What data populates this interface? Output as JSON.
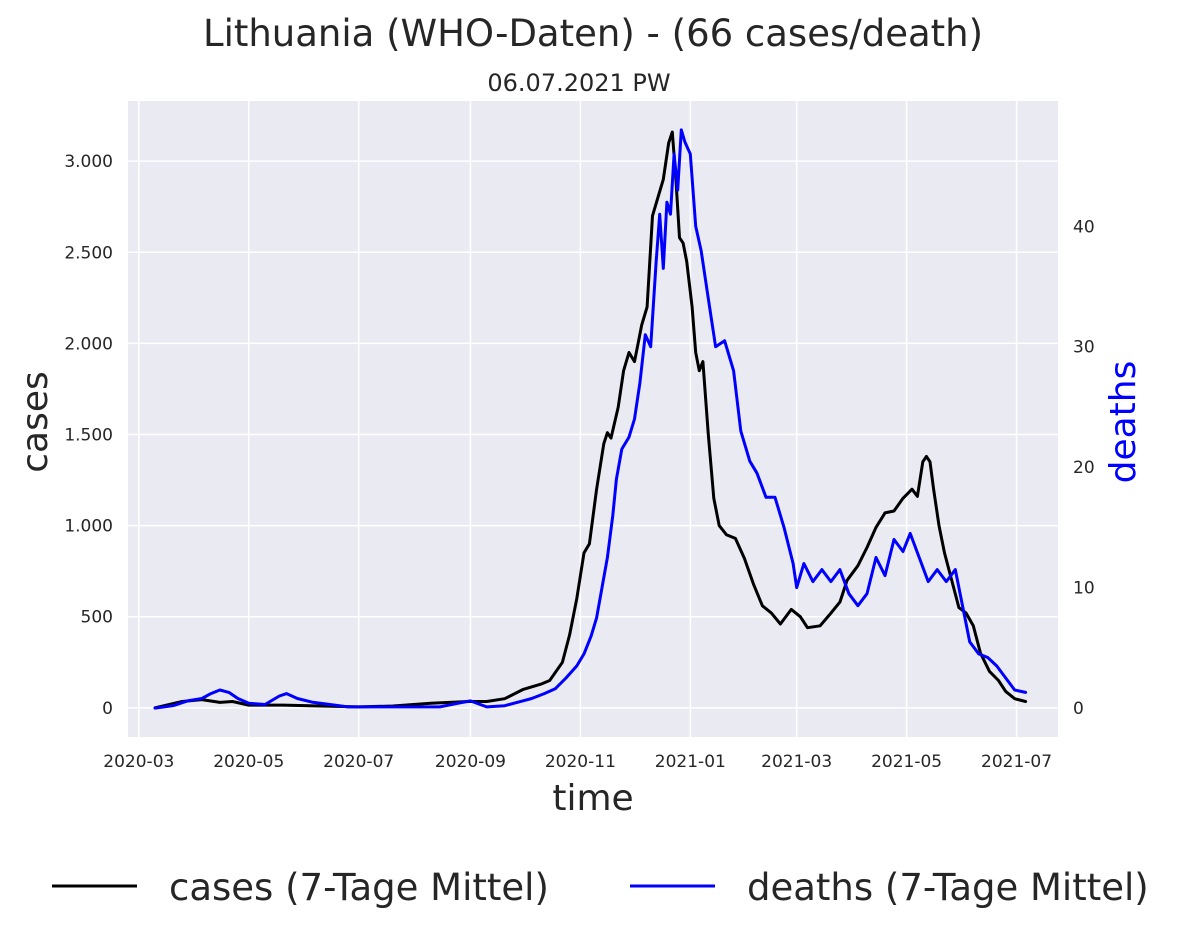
{
  "chart_data": {
    "type": "line",
    "title": "Lithuania (WHO-Daten) - (66 cases/death)",
    "subtitle": "06.07.2021 PW",
    "xlabel": "time",
    "ylabel_left": "cases",
    "ylabel_right": "deaths",
    "x_ticks": [
      "2020-03",
      "2020-05",
      "2020-07",
      "2020-09",
      "2020-11",
      "2021-01",
      "2021-03",
      "2021-05",
      "2021-07"
    ],
    "y_left_ticks": [
      0,
      500,
      1000,
      1500,
      2000,
      2500,
      3000
    ],
    "y_left_tick_labels": [
      "0",
      "500",
      "1.000",
      "1.500",
      "2.000",
      "2.500",
      "3.000"
    ],
    "y_right_ticks": [
      0,
      10,
      20,
      30,
      40
    ],
    "y_right_tick_labels": [
      "0",
      "10",
      "20",
      "30",
      "40"
    ],
    "x_range": [
      "2020-02-24",
      "2021-07-24"
    ],
    "y_left_range": [
      -160,
      3330
    ],
    "y_right_range": [
      -2.4,
      50.4
    ],
    "grid": true,
    "legend_position": "bottom",
    "colors": {
      "cases": "#000000",
      "deaths": "#0000ff",
      "background": "#eaeaf2",
      "grid": "#ffffff"
    },
    "series": [
      {
        "name": "cases (7-Tage Mittel)",
        "axis": "left",
        "color": "#000000",
        "points": [
          [
            "2020-03-10",
            0
          ],
          [
            "2020-03-25",
            35
          ],
          [
            "2020-04-05",
            45
          ],
          [
            "2020-04-15",
            30
          ],
          [
            "2020-04-22",
            35
          ],
          [
            "2020-05-01",
            15
          ],
          [
            "2020-05-20",
            15
          ],
          [
            "2020-06-10",
            10
          ],
          [
            "2020-07-01",
            5
          ],
          [
            "2020-07-20",
            10
          ],
          [
            "2020-08-10",
            25
          ],
          [
            "2020-08-31",
            35
          ],
          [
            "2020-09-10",
            35
          ],
          [
            "2020-09-20",
            50
          ],
          [
            "2020-09-30",
            100
          ],
          [
            "2020-10-10",
            130
          ],
          [
            "2020-10-15",
            150
          ],
          [
            "2020-10-22",
            250
          ],
          [
            "2020-10-26",
            400
          ],
          [
            "2020-10-30",
            600
          ],
          [
            "2020-11-03",
            850
          ],
          [
            "2020-11-06",
            900
          ],
          [
            "2020-11-10",
            1200
          ],
          [
            "2020-11-14",
            1450
          ],
          [
            "2020-11-16",
            1510
          ],
          [
            "2020-11-18",
            1480
          ],
          [
            "2020-11-22",
            1650
          ],
          [
            "2020-11-25",
            1850
          ],
          [
            "2020-11-28",
            1950
          ],
          [
            "2020-12-01",
            1900
          ],
          [
            "2020-12-05",
            2100
          ],
          [
            "2020-12-08",
            2200
          ],
          [
            "2020-12-11",
            2700
          ],
          [
            "2020-12-14",
            2800
          ],
          [
            "2020-12-17",
            2900
          ],
          [
            "2020-12-20",
            3100
          ],
          [
            "2020-12-22",
            3160
          ],
          [
            "2020-12-24",
            2900
          ],
          [
            "2020-12-26",
            2580
          ],
          [
            "2020-12-28",
            2550
          ],
          [
            "2020-12-30",
            2450
          ],
          [
            "2021-01-02",
            2200
          ],
          [
            "2021-01-04",
            1950
          ],
          [
            "2021-01-06",
            1850
          ],
          [
            "2021-01-08",
            1900
          ],
          [
            "2021-01-11",
            1500
          ],
          [
            "2021-01-14",
            1150
          ],
          [
            "2021-01-17",
            1000
          ],
          [
            "2021-01-21",
            950
          ],
          [
            "2021-01-26",
            930
          ],
          [
            "2021-01-31",
            820
          ],
          [
            "2021-02-05",
            680
          ],
          [
            "2021-02-10",
            560
          ],
          [
            "2021-02-15",
            520
          ],
          [
            "2021-02-20",
            460
          ],
          [
            "2021-02-26",
            540
          ],
          [
            "2021-03-03",
            500
          ],
          [
            "2021-03-07",
            440
          ],
          [
            "2021-03-14",
            450
          ],
          [
            "2021-03-20",
            520
          ],
          [
            "2021-03-25",
            580
          ],
          [
            "2021-03-29",
            700
          ],
          [
            "2021-04-04",
            780
          ],
          [
            "2021-04-09",
            880
          ],
          [
            "2021-04-14",
            990
          ],
          [
            "2021-04-19",
            1070
          ],
          [
            "2021-04-24",
            1080
          ],
          [
            "2021-04-29",
            1150
          ],
          [
            "2021-05-04",
            1200
          ],
          [
            "2021-05-07",
            1160
          ],
          [
            "2021-05-10",
            1350
          ],
          [
            "2021-05-12",
            1380
          ],
          [
            "2021-05-14",
            1350
          ],
          [
            "2021-05-16",
            1200
          ],
          [
            "2021-05-19",
            1000
          ],
          [
            "2021-05-22",
            850
          ],
          [
            "2021-05-26",
            700
          ],
          [
            "2021-05-30",
            550
          ],
          [
            "2021-06-03",
            520
          ],
          [
            "2021-06-07",
            450
          ],
          [
            "2021-06-11",
            300
          ],
          [
            "2021-06-16",
            200
          ],
          [
            "2021-06-21",
            150
          ],
          [
            "2021-06-25",
            90
          ],
          [
            "2021-06-30",
            50
          ],
          [
            "2021-07-06",
            35
          ]
        ]
      },
      {
        "name": "deaths (7-Tage Mittel)",
        "axis": "right",
        "color": "#0000ff",
        "points": [
          [
            "2020-03-10",
            0
          ],
          [
            "2020-03-20",
            0.2
          ],
          [
            "2020-03-28",
            0.6
          ],
          [
            "2020-04-05",
            0.8
          ],
          [
            "2020-04-10",
            1.2
          ],
          [
            "2020-04-15",
            1.5
          ],
          [
            "2020-04-20",
            1.3
          ],
          [
            "2020-04-25",
            0.8
          ],
          [
            "2020-05-01",
            0.4
          ],
          [
            "2020-05-10",
            0.3
          ],
          [
            "2020-05-18",
            1.0
          ],
          [
            "2020-05-22",
            1.2
          ],
          [
            "2020-05-28",
            0.8
          ],
          [
            "2020-06-05",
            0.5
          ],
          [
            "2020-06-15",
            0.3
          ],
          [
            "2020-06-25",
            0.1
          ],
          [
            "2020-07-10",
            0.1
          ],
          [
            "2020-08-01",
            0.1
          ],
          [
            "2020-08-15",
            0.1
          ],
          [
            "2020-08-25",
            0.4
          ],
          [
            "2020-09-01",
            0.6
          ],
          [
            "2020-09-10",
            0.1
          ],
          [
            "2020-09-20",
            0.2
          ],
          [
            "2020-09-30",
            0.6
          ],
          [
            "2020-10-05",
            0.8
          ],
          [
            "2020-10-12",
            1.2
          ],
          [
            "2020-10-18",
            1.6
          ],
          [
            "2020-10-24",
            2.5
          ],
          [
            "2020-10-30",
            3.5
          ],
          [
            "2020-11-03",
            4.5
          ],
          [
            "2020-11-07",
            6.0
          ],
          [
            "2020-11-10",
            7.5
          ],
          [
            "2020-11-13",
            10.0
          ],
          [
            "2020-11-16",
            12.5
          ],
          [
            "2020-11-19",
            16.0
          ],
          [
            "2020-11-21",
            19.0
          ],
          [
            "2020-11-24",
            21.5
          ],
          [
            "2020-11-28",
            22.5
          ],
          [
            "2020-12-01",
            24.0
          ],
          [
            "2020-12-04",
            27.0
          ],
          [
            "2020-12-07",
            31.0
          ],
          [
            "2020-12-10",
            30.0
          ],
          [
            "2020-12-13",
            37.0
          ],
          [
            "2020-12-15",
            41.0
          ],
          [
            "2020-12-17",
            36.5
          ],
          [
            "2020-12-19",
            42.0
          ],
          [
            "2020-12-21",
            41.0
          ],
          [
            "2020-12-23",
            46.0
          ],
          [
            "2020-12-25",
            43.0
          ],
          [
            "2020-12-27",
            48.0
          ],
          [
            "2020-12-29",
            47.0
          ],
          [
            "2021-01-01",
            46.0
          ],
          [
            "2021-01-04",
            40.0
          ],
          [
            "2021-01-07",
            38.0
          ],
          [
            "2021-01-11",
            34.0
          ],
          [
            "2021-01-15",
            30.0
          ],
          [
            "2021-01-20",
            30.5
          ],
          [
            "2021-01-25",
            28.0
          ],
          [
            "2021-01-29",
            23.0
          ],
          [
            "2021-02-03",
            20.5
          ],
          [
            "2021-02-07",
            19.5
          ],
          [
            "2021-02-12",
            17.5
          ],
          [
            "2021-02-17",
            17.5
          ],
          [
            "2021-02-22",
            15.0
          ],
          [
            "2021-02-27",
            12.0
          ],
          [
            "2021-03-01",
            10.0
          ],
          [
            "2021-03-05",
            12.0
          ],
          [
            "2021-03-10",
            10.5
          ],
          [
            "2021-03-15",
            11.5
          ],
          [
            "2021-03-20",
            10.5
          ],
          [
            "2021-03-25",
            11.5
          ],
          [
            "2021-03-30",
            9.5
          ],
          [
            "2021-04-04",
            8.5
          ],
          [
            "2021-04-09",
            9.5
          ],
          [
            "2021-04-14",
            12.5
          ],
          [
            "2021-04-19",
            11.0
          ],
          [
            "2021-04-24",
            14.0
          ],
          [
            "2021-04-29",
            13.0
          ],
          [
            "2021-05-03",
            14.5
          ],
          [
            "2021-05-08",
            12.5
          ],
          [
            "2021-05-13",
            10.5
          ],
          [
            "2021-05-18",
            11.5
          ],
          [
            "2021-05-23",
            10.5
          ],
          [
            "2021-05-28",
            11.5
          ],
          [
            "2021-06-01",
            8.5
          ],
          [
            "2021-06-05",
            5.5
          ],
          [
            "2021-06-10",
            4.5
          ],
          [
            "2021-06-15",
            4.2
          ],
          [
            "2021-06-20",
            3.5
          ],
          [
            "2021-06-25",
            2.5
          ],
          [
            "2021-06-30",
            1.5
          ],
          [
            "2021-07-06",
            1.3
          ]
        ]
      }
    ]
  }
}
